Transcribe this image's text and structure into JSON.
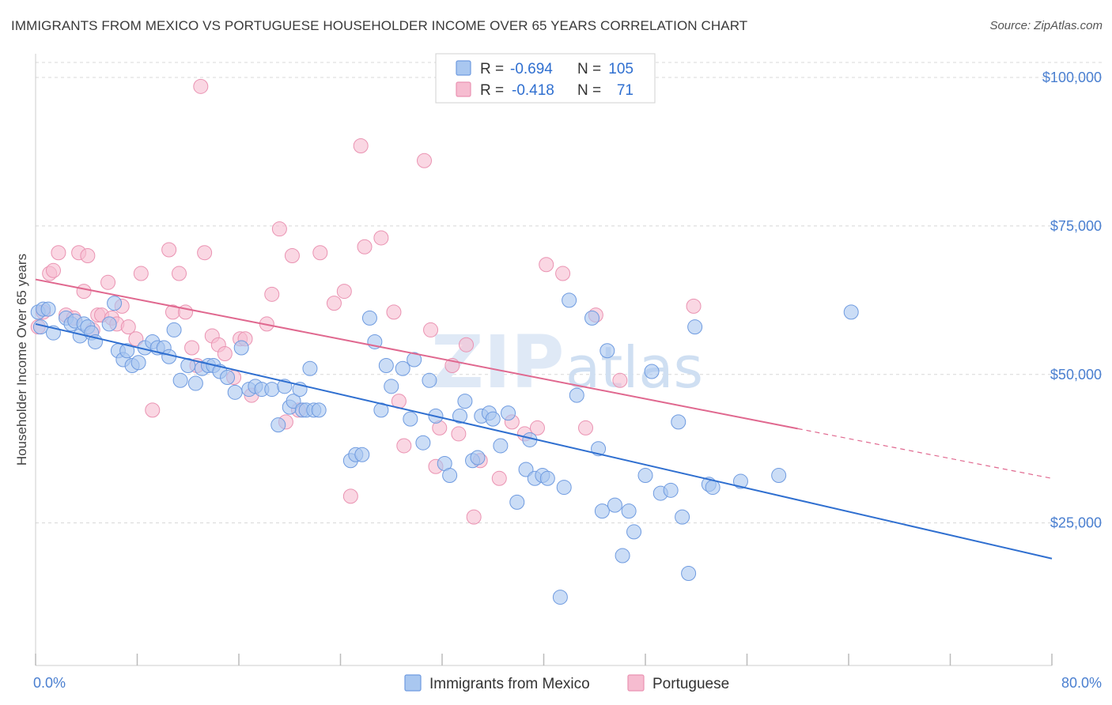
{
  "title": "IMMIGRANTS FROM MEXICO VS PORTUGUESE HOUSEHOLDER INCOME OVER 65 YEARS CORRELATION CHART",
  "source": "Source: ZipAtlas.com",
  "watermark": {
    "zip": "ZIP",
    "atlas": "atlas"
  },
  "colors": {
    "mexico_fill": "#a9c7f0",
    "mexico_stroke": "#6f9be0",
    "mexico_line": "#2f6fd0",
    "portuguese_fill": "#f6bcd0",
    "portuguese_stroke": "#ea93b2",
    "portuguese_line": "#e0688f",
    "tick_label": "#4a7fd0",
    "grid": "#d8d8d8"
  },
  "stats_box": {
    "rows": [
      {
        "r_label": "R =",
        "r_value": "-0.694",
        "n_label": "N =",
        "n_value": "105"
      },
      {
        "r_label": "R =",
        "r_value": "-0.418",
        "n_label": "N =",
        "n_value": "71"
      }
    ]
  },
  "chart_data": {
    "type": "scatter",
    "title": "IMMIGRANTS FROM MEXICO VS PORTUGUESE HOUSEHOLDER INCOME OVER 65 YEARS CORRELATION CHART",
    "xlabel": "",
    "ylabel": "Householder Income Over 65 years",
    "xlim": [
      0,
      80
    ],
    "ylim": [
      1000,
      104000
    ],
    "x_tick_labels": [
      "0.0%",
      "80.0%"
    ],
    "y_ticks": [
      25000,
      50000,
      75000,
      100000
    ],
    "y_tick_labels": [
      "$25,000",
      "$50,000",
      "$75,000",
      "$100,000"
    ],
    "grid": true,
    "legend_position": "bottom-center",
    "series": [
      {
        "name": "Immigrants from Mexico",
        "r": -0.694,
        "n": 105,
        "trend": {
          "x0": 0,
          "y0": 58500,
          "x1": 80,
          "y1": 19000,
          "solid_until": 80
        },
        "points": [
          [
            0.2,
            60500
          ],
          [
            0.4,
            58000
          ],
          [
            0.6,
            61000
          ],
          [
            1.0,
            61000
          ],
          [
            1.4,
            57000
          ],
          [
            2.4,
            59500
          ],
          [
            2.8,
            58500
          ],
          [
            3.1,
            59000
          ],
          [
            3.5,
            56500
          ],
          [
            3.8,
            58500
          ],
          [
            4.1,
            58000
          ],
          [
            4.4,
            57000
          ],
          [
            4.7,
            55500
          ],
          [
            5.8,
            58500
          ],
          [
            6.2,
            62000
          ],
          [
            6.5,
            54000
          ],
          [
            6.9,
            52500
          ],
          [
            7.2,
            54000
          ],
          [
            7.6,
            51500
          ],
          [
            8.1,
            52000
          ],
          [
            8.6,
            54500
          ],
          [
            9.2,
            55500
          ],
          [
            9.6,
            54500
          ],
          [
            10.1,
            54500
          ],
          [
            10.5,
            53000
          ],
          [
            10.9,
            57500
          ],
          [
            11.4,
            49000
          ],
          [
            12.0,
            51500
          ],
          [
            12.6,
            48500
          ],
          [
            13.1,
            51000
          ],
          [
            13.6,
            51500
          ],
          [
            14.0,
            51500
          ],
          [
            14.5,
            50500
          ],
          [
            15.1,
            49500
          ],
          [
            15.7,
            47000
          ],
          [
            16.2,
            54500
          ],
          [
            16.8,
            47500
          ],
          [
            17.3,
            48000
          ],
          [
            17.8,
            47500
          ],
          [
            18.6,
            47500
          ],
          [
            19.1,
            41500
          ],
          [
            19.6,
            48000
          ],
          [
            20.0,
            44500
          ],
          [
            20.3,
            45500
          ],
          [
            20.8,
            47500
          ],
          [
            21.0,
            44000
          ],
          [
            21.3,
            44000
          ],
          [
            21.6,
            51000
          ],
          [
            21.9,
            44000
          ],
          [
            22.3,
            44000
          ],
          [
            24.8,
            35500
          ],
          [
            25.2,
            36500
          ],
          [
            25.7,
            36500
          ],
          [
            26.3,
            59500
          ],
          [
            26.7,
            55500
          ],
          [
            27.2,
            44000
          ],
          [
            27.6,
            51500
          ],
          [
            28.0,
            48000
          ],
          [
            28.9,
            51000
          ],
          [
            29.5,
            42500
          ],
          [
            29.8,
            52500
          ],
          [
            30.5,
            38500
          ],
          [
            31.0,
            49000
          ],
          [
            31.5,
            43000
          ],
          [
            32.2,
            35000
          ],
          [
            32.6,
            33000
          ],
          [
            33.4,
            43000
          ],
          [
            33.8,
            45500
          ],
          [
            34.4,
            35500
          ],
          [
            34.8,
            36000
          ],
          [
            35.1,
            43000
          ],
          [
            35.7,
            43500
          ],
          [
            36.0,
            42500
          ],
          [
            36.6,
            38000
          ],
          [
            37.2,
            43500
          ],
          [
            37.9,
            28500
          ],
          [
            38.6,
            34000
          ],
          [
            38.9,
            39000
          ],
          [
            39.3,
            32500
          ],
          [
            39.9,
            33000
          ],
          [
            40.3,
            32500
          ],
          [
            41.6,
            31000
          ],
          [
            42.0,
            62500
          ],
          [
            42.6,
            46500
          ],
          [
            43.8,
            59500
          ],
          [
            44.3,
            37500
          ],
          [
            44.6,
            27000
          ],
          [
            45.0,
            54000
          ],
          [
            45.6,
            28000
          ],
          [
            46.2,
            19500
          ],
          [
            46.7,
            27000
          ],
          [
            47.1,
            23500
          ],
          [
            48.0,
            33000
          ],
          [
            48.5,
            50500
          ],
          [
            49.2,
            30000
          ],
          [
            50.0,
            30500
          ],
          [
            50.6,
            42000
          ],
          [
            50.9,
            26000
          ],
          [
            51.4,
            16500
          ],
          [
            51.9,
            58000
          ],
          [
            53.0,
            31500
          ],
          [
            53.3,
            31000
          ],
          [
            55.5,
            32000
          ],
          [
            58.5,
            33000
          ],
          [
            64.2,
            60500
          ],
          [
            41.3,
            12500
          ]
        ]
      },
      {
        "name": "Portuguese",
        "r": -0.418,
        "n": 71,
        "trend": {
          "x0": 0,
          "y0": 66000,
          "x1": 80,
          "y1": 32500,
          "solid_until": 60
        },
        "points": [
          [
            0.2,
            58000
          ],
          [
            0.6,
            60500
          ],
          [
            1.1,
            67000
          ],
          [
            1.4,
            67500
          ],
          [
            1.8,
            70500
          ],
          [
            2.4,
            60000
          ],
          [
            3.0,
            59500
          ],
          [
            3.4,
            70500
          ],
          [
            3.8,
            64000
          ],
          [
            4.1,
            70000
          ],
          [
            4.5,
            57500
          ],
          [
            4.9,
            60000
          ],
          [
            5.2,
            60000
          ],
          [
            5.7,
            65500
          ],
          [
            6.0,
            59500
          ],
          [
            6.4,
            58500
          ],
          [
            6.8,
            61500
          ],
          [
            7.3,
            58000
          ],
          [
            7.9,
            56000
          ],
          [
            8.3,
            67000
          ],
          [
            9.2,
            44000
          ],
          [
            10.5,
            71000
          ],
          [
            10.8,
            60500
          ],
          [
            11.3,
            67000
          ],
          [
            11.8,
            60500
          ],
          [
            12.3,
            54500
          ],
          [
            12.7,
            51500
          ],
          [
            13.3,
            70500
          ],
          [
            13.9,
            56500
          ],
          [
            14.4,
            55000
          ],
          [
            14.9,
            53500
          ],
          [
            15.6,
            49500
          ],
          [
            16.1,
            56000
          ],
          [
            16.5,
            56000
          ],
          [
            17.0,
            46500
          ],
          [
            18.2,
            58500
          ],
          [
            18.6,
            63500
          ],
          [
            19.2,
            74500
          ],
          [
            19.7,
            42000
          ],
          [
            20.2,
            70000
          ],
          [
            20.7,
            44000
          ],
          [
            22.4,
            70500
          ],
          [
            23.5,
            62000
          ],
          [
            24.3,
            64000
          ],
          [
            24.8,
            29500
          ],
          [
            25.6,
            88500
          ],
          [
            25.9,
            71500
          ],
          [
            27.2,
            73000
          ],
          [
            28.2,
            60500
          ],
          [
            28.6,
            45500
          ],
          [
            29.0,
            38000
          ],
          [
            30.6,
            86000
          ],
          [
            31.1,
            57500
          ],
          [
            31.5,
            34500
          ],
          [
            31.8,
            41000
          ],
          [
            32.8,
            51500
          ],
          [
            33.3,
            40000
          ],
          [
            33.9,
            55000
          ],
          [
            34.5,
            26000
          ],
          [
            35.0,
            35500
          ],
          [
            36.5,
            32500
          ],
          [
            37.5,
            42000
          ],
          [
            38.5,
            40000
          ],
          [
            39.5,
            41000
          ],
          [
            40.2,
            68500
          ],
          [
            41.5,
            67000
          ],
          [
            43.3,
            41000
          ],
          [
            44.1,
            60000
          ],
          [
            46.0,
            49000
          ],
          [
            51.8,
            61500
          ],
          [
            13.0,
            98500
          ]
        ]
      }
    ]
  },
  "legend": [
    {
      "label": "Immigrants from Mexico"
    },
    {
      "label": "Portuguese"
    }
  ]
}
